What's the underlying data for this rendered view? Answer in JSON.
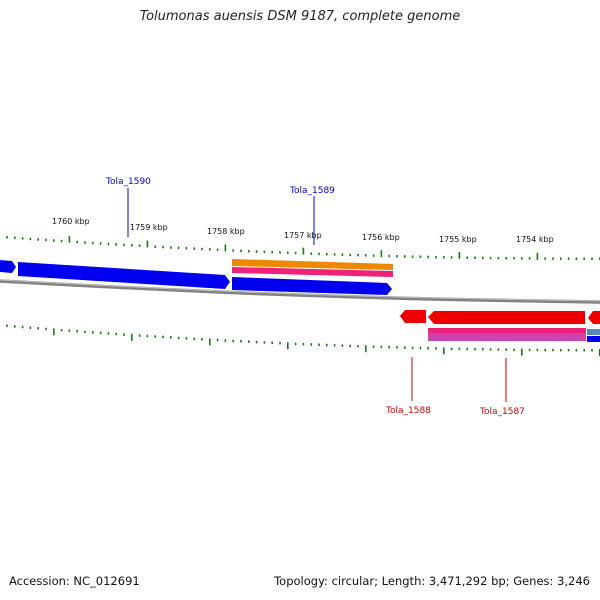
{
  "header": {
    "title": "Tolumonas auensis DSM 9187, complete genome"
  },
  "footer": {
    "accession": "Accession: NC_012691",
    "summary": "Topology: circular; Length: 3,471,292 bp; Genes: 3,246"
  },
  "scale": {
    "unit": "kbp",
    "labels": [
      "1760 kbp",
      "1759 kbp",
      "1758 kbp",
      "1757 kbp",
      "1756 kbp",
      "1755 kbp",
      "1754 kbp"
    ]
  },
  "genes": [
    {
      "id": "Tola_1590",
      "strand": "+",
      "color": "#0000ee"
    },
    {
      "id": "Tola_1589",
      "strand": "+",
      "color": "#0000ee"
    },
    {
      "id": "Tola_1588",
      "strand": "-",
      "color": "#ee0000"
    },
    {
      "id": "Tola_1587",
      "strand": "-",
      "color": "#ee0000"
    }
  ],
  "colors": {
    "forward_gene": "#0000ee",
    "reverse_gene": "#ee0000",
    "tick": "#1a7a1a",
    "backbone": "#808080",
    "feature_orange": "#ee8800",
    "feature_pink": "#ee2277",
    "feature_magenta": "#cc44aa"
  }
}
